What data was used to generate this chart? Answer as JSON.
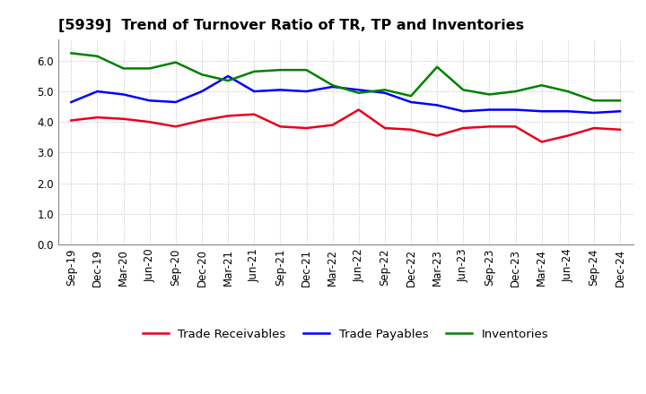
{
  "title": "[5939]  Trend of Turnover Ratio of TR, TP and Inventories",
  "x_labels": [
    "Sep-19",
    "Dec-19",
    "Mar-20",
    "Jun-20",
    "Sep-20",
    "Dec-20",
    "Mar-21",
    "Jun-21",
    "Sep-21",
    "Dec-21",
    "Mar-22",
    "Jun-22",
    "Sep-22",
    "Dec-22",
    "Mar-23",
    "Jun-23",
    "Sep-23",
    "Dec-23",
    "Mar-24",
    "Jun-24",
    "Sep-24",
    "Dec-24"
  ],
  "trade_receivables": [
    4.05,
    4.15,
    4.1,
    4.0,
    3.85,
    4.05,
    4.2,
    4.25,
    3.85,
    3.8,
    3.9,
    4.4,
    3.8,
    3.75,
    3.55,
    3.8,
    3.85,
    3.85,
    3.35,
    3.55,
    3.8,
    3.75
  ],
  "trade_payables": [
    4.65,
    5.0,
    4.9,
    4.7,
    4.65,
    5.0,
    5.5,
    5.0,
    5.05,
    5.0,
    5.15,
    5.05,
    4.95,
    4.65,
    4.55,
    4.35,
    4.4,
    4.4,
    4.35,
    4.35,
    4.3,
    4.35
  ],
  "inventories": [
    6.25,
    6.15,
    5.75,
    5.75,
    5.95,
    5.55,
    5.35,
    5.65,
    5.7,
    5.7,
    5.2,
    4.95,
    5.05,
    4.85,
    5.8,
    5.05,
    4.9,
    5.0,
    5.2,
    5.0,
    4.7,
    4.7
  ],
  "ylim": [
    0.0,
    6.7
  ],
  "yticks": [
    0.0,
    1.0,
    2.0,
    3.0,
    4.0,
    5.0,
    6.0
  ],
  "color_tr": "#e8001c",
  "color_tp": "#0000ff",
  "color_inv": "#008000",
  "linewidth": 1.8,
  "legend_labels": [
    "Trade Receivables",
    "Trade Payables",
    "Inventories"
  ],
  "bg_color": "#ffffff",
  "grid_color": "#bbbbbb",
  "title_fontsize": 11.5,
  "label_fontsize": 8.5,
  "legend_fontsize": 9.5
}
